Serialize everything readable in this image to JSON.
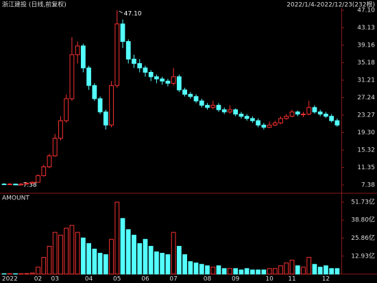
{
  "chart_data": {
    "type": "candlestick",
    "title": "浙江建投 (日线,前复权)",
    "subtitle": "2022/1/4-2022/12/23(232根)",
    "up_color": "#ff3232",
    "down_color": "#54ffff",
    "categories": [
      null,
      "2022",
      null,
      null,
      null,
      null,
      "02",
      null,
      null,
      "03",
      null,
      null,
      null,
      null,
      null,
      "04",
      null,
      null,
      null,
      null,
      "05",
      null,
      null,
      null,
      null,
      "06",
      null,
      null,
      null,
      null,
      "07",
      null,
      null,
      null,
      null,
      null,
      "08",
      null,
      null,
      null,
      null,
      "09",
      null,
      null,
      null,
      null,
      null,
      "10",
      null,
      null,
      null,
      "11",
      null,
      null,
      null,
      null,
      null,
      "12",
      null,
      null
    ],
    "open": [
      7.6,
      7.5,
      7.6,
      7.4,
      7.6,
      7.8,
      8.0,
      9.5,
      11.5,
      14,
      18,
      22,
      27,
      37,
      39,
      34,
      30,
      27,
      24,
      21,
      30,
      44,
      40,
      36,
      35,
      34,
      33,
      32,
      31.5,
      31,
      30.5,
      32,
      29,
      28,
      27.5,
      26.5,
      25.5,
      25,
      25.5,
      24.5,
      24,
      24.5,
      23.5,
      23,
      22.5,
      22,
      21,
      20.5,
      21,
      21.5,
      22.5,
      23,
      24,
      23.5,
      23.5,
      25,
      24,
      23.5,
      23,
      22
    ],
    "high": {
      "values": [
        7.8,
        7.8,
        7.7,
        7.8,
        8.0,
        8.2,
        9.8,
        12,
        14.5,
        19,
        23,
        28,
        41,
        40,
        39.5,
        34.5,
        30.5,
        27.5,
        24.5,
        31,
        47.1,
        45,
        40.5,
        37,
        36,
        34.5,
        33.5,
        32.5,
        32,
        31.5,
        34,
        32.5,
        29.5,
        28.5,
        28,
        27,
        26,
        26.5,
        26,
        25,
        25.5,
        24.8,
        24,
        23.5,
        23,
        22.5,
        21.5,
        21.8,
        22,
        23,
        23.5,
        24.5,
        24.3,
        24,
        26.5,
        25.5,
        24.5,
        24,
        23.5,
        22.5
      ],
      "value_labels": [
        null,
        null,
        null,
        null,
        null,
        null,
        null,
        null,
        null,
        null,
        null,
        null,
        null,
        null,
        null,
        null,
        null,
        null,
        null,
        null,
        "47.10",
        null,
        null,
        null,
        null,
        null,
        null,
        null,
        null,
        null,
        null,
        null,
        null,
        null,
        null,
        null,
        null,
        null,
        null,
        null,
        null,
        null,
        null,
        null,
        null,
        null,
        null,
        null,
        null,
        null,
        null,
        null,
        null,
        null,
        null,
        null,
        null,
        null,
        null,
        null
      ]
    },
    "low": {
      "values": [
        7.4,
        7.4,
        7.38,
        7.4,
        7.5,
        7.7,
        7.9,
        9.3,
        11.2,
        13.8,
        17.5,
        21.5,
        26.5,
        35,
        33,
        29,
        26.5,
        23.5,
        20,
        20.5,
        29.5,
        38.5,
        35,
        34,
        33,
        32,
        31,
        30.5,
        30.2,
        29.8,
        30,
        28.5,
        27.5,
        27,
        26,
        25,
        24.5,
        24.6,
        24,
        23.5,
        23.6,
        23,
        22.5,
        22,
        21.5,
        20.5,
        20,
        20.3,
        20.8,
        21.2,
        22.2,
        22.8,
        23,
        22.8,
        23.2,
        23.6,
        23,
        22.6,
        21.6,
        20.6
      ],
      "value_labels": [
        null,
        null,
        "7.38",
        null,
        null,
        null,
        null,
        null,
        null,
        null,
        null,
        null,
        null,
        null,
        null,
        null,
        null,
        null,
        null,
        null,
        null,
        null,
        null,
        null,
        null,
        null,
        null,
        null,
        null,
        null,
        null,
        null,
        null,
        null,
        null,
        null,
        null,
        null,
        null,
        null,
        null,
        null,
        null,
        null,
        null,
        null,
        null,
        null,
        null,
        null,
        null,
        null,
        null,
        null,
        null,
        null,
        null,
        null,
        null,
        null
      ]
    },
    "close": [
      7.5,
      7.6,
      7.4,
      7.6,
      7.8,
      8.0,
      9.5,
      11.5,
      14,
      18,
      22,
      27,
      37,
      39,
      34,
      30,
      27,
      24,
      21,
      30,
      44,
      40,
      36,
      35,
      34,
      33,
      32,
      31.5,
      31,
      30.5,
      32,
      29,
      28,
      27.5,
      26.5,
      25.5,
      25,
      25.5,
      24.5,
      24,
      24.5,
      23.5,
      23,
      22.5,
      22,
      21,
      20.5,
      21,
      21.5,
      22.5,
      23,
      24,
      23.5,
      23.5,
      25,
      24,
      23.5,
      23,
      22,
      21
    ],
    "ylim": [
      5.82,
      47.88
    ],
    "yticks": [
      {
        "value": 47.1,
        "label": "47.10"
      },
      43.13,
      39.16,
      35.18,
      31.21,
      27.24,
      23.27,
      {
        "value": 19.3,
        "label": "19.30"
      },
      15.32,
      11.35,
      7.38
    ],
    "volume": {
      "name": "AMOUNT",
      "values": [
        0.3,
        0.3,
        0.3,
        0.3,
        0.4,
        0.8,
        5,
        12,
        20,
        30,
        28,
        33,
        35,
        30,
        26,
        22,
        18,
        15,
        14,
        25,
        51.73,
        40,
        32,
        28,
        22,
        25,
        20,
        16,
        15,
        14,
        30,
        20,
        14,
        9,
        8,
        7,
        6,
        5,
        6,
        4,
        4,
        4,
        3,
        4,
        3,
        3,
        3,
        4,
        4,
        6,
        8,
        10,
        6,
        5,
        12,
        7,
        5,
        6,
        4,
        4
      ],
      "ylim": [
        0,
        54.19
      ],
      "yticks": [
        {
          "value": 51.73,
          "label": "51.73亿"
        },
        {
          "value": 38.8,
          "label": "38.80亿"
        },
        {
          "value": 25.86,
          "label": "25.86亿"
        },
        {
          "value": 12.93,
          "label": "12.93亿"
        }
      ]
    }
  }
}
